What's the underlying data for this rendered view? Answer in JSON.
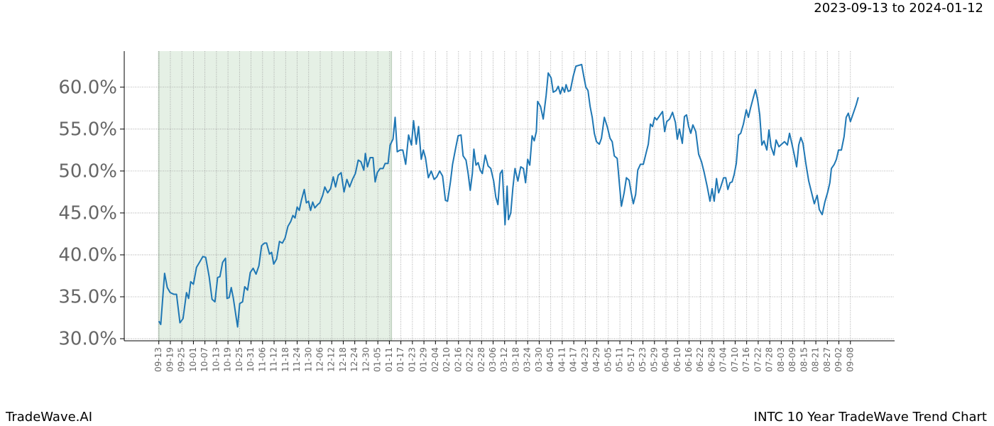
{
  "chart_data": {
    "type": "line",
    "title": "2023-09-13 to 2024-01-12",
    "source": "TradeWave.AI",
    "caption": "INTC 10 Year TradeWave Trend Chart",
    "color": "#1f77b4",
    "highlight_range": [
      0,
      121
    ],
    "highlight_color": "#e5f0e5",
    "grid": true,
    "xlim": [
      -18,
      383
    ],
    "ylim": [
      29.75,
      64.3
    ],
    "yticks": [
      {
        "value": 30,
        "label": "30.0%"
      },
      {
        "value": 35,
        "label": "35.0%"
      },
      {
        "value": 40,
        "label": "40.0%"
      },
      {
        "value": 45,
        "label": "45.0%"
      },
      {
        "value": 50,
        "label": "50.0%"
      },
      {
        "value": 55,
        "label": "55.0%"
      },
      {
        "value": 60,
        "label": "60.0%"
      }
    ],
    "xticks": [
      {
        "value": 0,
        "label": "09-13"
      },
      {
        "value": 6,
        "label": "09-19"
      },
      {
        "value": 12,
        "label": "09-25"
      },
      {
        "value": 18,
        "label": "10-01"
      },
      {
        "value": 24,
        "label": "10-07"
      },
      {
        "value": 30,
        "label": "10-13"
      },
      {
        "value": 36,
        "label": "10-19"
      },
      {
        "value": 42,
        "label": "10-25"
      },
      {
        "value": 48,
        "label": "10-31"
      },
      {
        "value": 54,
        "label": "11-06"
      },
      {
        "value": 60,
        "label": "11-12"
      },
      {
        "value": 66,
        "label": "11-18"
      },
      {
        "value": 72,
        "label": "11-24"
      },
      {
        "value": 78,
        "label": "11-30"
      },
      {
        "value": 84,
        "label": "12-06"
      },
      {
        "value": 90,
        "label": "12-12"
      },
      {
        "value": 96,
        "label": "12-18"
      },
      {
        "value": 102,
        "label": "12-24"
      },
      {
        "value": 108,
        "label": "12-30"
      },
      {
        "value": 114,
        "label": "01-05"
      },
      {
        "value": 120,
        "label": "01-11"
      },
      {
        "value": 126,
        "label": "01-17"
      },
      {
        "value": 132,
        "label": "01-23"
      },
      {
        "value": 138,
        "label": "01-29"
      },
      {
        "value": 144,
        "label": "02-04"
      },
      {
        "value": 150,
        "label": "02-10"
      },
      {
        "value": 156,
        "label": "02-16"
      },
      {
        "value": 162,
        "label": "02-22"
      },
      {
        "value": 168,
        "label": "02-28"
      },
      {
        "value": 174,
        "label": "03-06"
      },
      {
        "value": 180,
        "label": "03-12"
      },
      {
        "value": 186,
        "label": "03-18"
      },
      {
        "value": 192,
        "label": "03-24"
      },
      {
        "value": 198,
        "label": "03-30"
      },
      {
        "value": 204,
        "label": "04-05"
      },
      {
        "value": 210,
        "label": "04-11"
      },
      {
        "value": 216,
        "label": "04-17"
      },
      {
        "value": 222,
        "label": "04-23"
      },
      {
        "value": 228,
        "label": "04-29"
      },
      {
        "value": 234,
        "label": "05-05"
      },
      {
        "value": 240,
        "label": "05-11"
      },
      {
        "value": 246,
        "label": "05-17"
      },
      {
        "value": 252,
        "label": "05-23"
      },
      {
        "value": 258,
        "label": "05-29"
      },
      {
        "value": 264,
        "label": "06-04"
      },
      {
        "value": 270,
        "label": "06-10"
      },
      {
        "value": 276,
        "label": "06-16"
      },
      {
        "value": 282,
        "label": "06-22"
      },
      {
        "value": 288,
        "label": "06-28"
      },
      {
        "value": 294,
        "label": "07-04"
      },
      {
        "value": 300,
        "label": "07-10"
      },
      {
        "value": 306,
        "label": "07-16"
      },
      {
        "value": 312,
        "label": "07-22"
      },
      {
        "value": 318,
        "label": "07-28"
      },
      {
        "value": 324,
        "label": "08-03"
      },
      {
        "value": 330,
        "label": "08-09"
      },
      {
        "value": 336,
        "label": "08-15"
      },
      {
        "value": 342,
        "label": "08-21"
      },
      {
        "value": 348,
        "label": "08-27"
      },
      {
        "value": 354,
        "label": "09-02"
      },
      {
        "value": 360,
        "label": "09-08"
      }
    ],
    "x": [
      0,
      1,
      3,
      4.4,
      5.9,
      7.8,
      9.2,
      11,
      12.6,
      14.4,
      15.5,
      16.6,
      18,
      19.6,
      21.4,
      22.9,
      24.4,
      26.2,
      27.7,
      29.2,
      30.6,
      31.8,
      33.2,
      34.7,
      35.5,
      36.6,
      37.7,
      38.8,
      39.9,
      41,
      42.1,
      43.6,
      44.7,
      46.2,
      47.6,
      49.1,
      50.6,
      52.1,
      53.5,
      55,
      56.1,
      57.6,
      58.7,
      59.8,
      61.3,
      62.8,
      64.3,
      65.7,
      67.2,
      68.7,
      69.8,
      70.9,
      72,
      73.1,
      74.2,
      75.7,
      76.8,
      77.9,
      79,
      80.1,
      81.2,
      82.7,
      83.8,
      85.3,
      86.4,
      87.9,
      89.4,
      90.8,
      92,
      93.4,
      94.9,
      96.4,
      97.9,
      99.3,
      100.8,
      102.3,
      103.8,
      105.2,
      106.7,
      107.5,
      108.6,
      110,
      111.5,
      112.6,
      113.7,
      115.2,
      116.7,
      117.8,
      119.3,
      120.4,
      121.9,
      123,
      124.1,
      125.6,
      127,
      128.5,
      130,
      131.5,
      132.6,
      134,
      135.2,
      136.6,
      137.7,
      138.8,
      140.3,
      141.8,
      143.3,
      144.7,
      146.2,
      147.7,
      149.2,
      150.3,
      151.8,
      152.9,
      154.4,
      155.8,
      157.3,
      158.4,
      159.9,
      161,
      162.1,
      163.2,
      164,
      165.1,
      166.2,
      167.3,
      168.4,
      169.9,
      171.4,
      172.8,
      174.3,
      175.4,
      176.5,
      177.7,
      178.8,
      180.2,
      181.3,
      182,
      183.2,
      184.3,
      185.4,
      186.9,
      188.4,
      189.8,
      190.9,
      192,
      193.1,
      194.3,
      195.4,
      196.5,
      197.2,
      198.7,
      200.1,
      201.6,
      202.7,
      204.2,
      205.3,
      206.8,
      207.9,
      209,
      210.1,
      211.2,
      212,
      213.1,
      214.2,
      215.7,
      217.1,
      218.6,
      220.1,
      221.2,
      222.3,
      223.4,
      224.5,
      225.6,
      226.7,
      227.8,
      229.3,
      230.4,
      231.9,
      233.4,
      234.9,
      236,
      237.1,
      238.6,
      239.7,
      240.8,
      242.2,
      243.4,
      244.8,
      245.9,
      247,
      248.2,
      249.3,
      250.7,
      252.2,
      253.7,
      254.8,
      255.9,
      257,
      258.1,
      259.2,
      260.7,
      262.2,
      263.3,
      264.4,
      265.9,
      267.4,
      268.9,
      269.9,
      271,
      272.5,
      273.6,
      274.7,
      275.8,
      276.9,
      278,
      279.5,
      281,
      282.5,
      283.9,
      285.4,
      286.9,
      288,
      289.1,
      290.3,
      291.4,
      292.5,
      294,
      295.1,
      296.2,
      297.3,
      298.4,
      299.5,
      300.6,
      301.8,
      302.9,
      304.3,
      305.8,
      306.9,
      308,
      309.5,
      310.6,
      311.7,
      312.8,
      313.9,
      315,
      316.5,
      317.6,
      318.7,
      320.2,
      321.3,
      322.8,
      324.2,
      325.7,
      327.2,
      328.3,
      329.4,
      330.9,
      332,
      333.1,
      334.2,
      335.3,
      336.8,
      338.3,
      339.7,
      341.2,
      342.7,
      343.8,
      345.3,
      346.7,
      348.2,
      349.3,
      350.1,
      351.6,
      352.7,
      353.8,
      355.3,
      356.7,
      357.8,
      358.9,
      360,
      361.5,
      363,
      364.1
    ],
    "values": [
      32.1,
      31.7,
      37.8,
      36.1,
      35.5,
      35.3,
      35.3,
      31.9,
      32.4,
      35.5,
      34.8,
      36.8,
      36.5,
      38.5,
      39.2,
      39.8,
      39.7,
      37.4,
      34.7,
      34.4,
      37.3,
      37.4,
      39.1,
      39.6,
      34.8,
      34.9,
      36.1,
      34.8,
      33.1,
      31.4,
      34.2,
      34.4,
      36.2,
      35.8,
      37.9,
      38.4,
      37.7,
      38.7,
      41.1,
      41.4,
      41.4,
      40.1,
      40.3,
      38.9,
      39.5,
      41.6,
      41.4,
      42.0,
      43.4,
      44,
      44.7,
      44.4,
      45.7,
      45.3,
      46.5,
      47.8,
      46.2,
      46.4,
      45.3,
      46.3,
      45.6,
      46,
      46.2,
      47.1,
      48.1,
      47.4,
      47.9,
      49.3,
      48.1,
      49.5,
      49.8,
      47.5,
      49,
      48.1,
      49,
      49.7,
      51.3,
      51.1,
      50.1,
      52.1,
      50.5,
      51.6,
      51.6,
      48.7,
      49.8,
      50.3,
      50.3,
      50.9,
      50.9,
      53.1,
      53.8,
      56.4,
      52.3,
      52.5,
      52.5,
      50.8,
      54.3,
      53.1,
      56,
      53.2,
      55.3,
      51.4,
      52.5,
      51.6,
      49.2,
      50,
      49,
      49.3,
      50,
      49.4,
      46.5,
      46.4,
      48.7,
      50.8,
      52.6,
      54.2,
      54.3,
      51.8,
      51.3,
      49.7,
      47.7,
      49.7,
      52.6,
      50.7,
      51,
      50.1,
      49.7,
      51.9,
      50.6,
      50.3,
      48.8,
      46.9,
      46,
      49.7,
      50.1,
      43.6,
      48.2,
      44.2,
      45,
      48,
      50.3,
      48.8,
      50.5,
      50.3,
      48.6,
      51.4,
      50.7,
      54.2,
      53.6,
      54.7,
      58.3,
      57.7,
      56.2,
      59,
      61.7,
      61.1,
      59.4,
      59.6,
      60.1,
      59.2,
      60,
      59.4,
      60.3,
      59.5,
      59.6,
      61.3,
      62.5,
      62.6,
      62.7,
      61.3,
      60,
      59.6,
      57.7,
      56.4,
      54.5,
      53.5,
      53.2,
      53.9,
      56.4,
      55.3,
      53.9,
      53.5,
      51.8,
      51.5,
      48.6,
      45.8,
      47.4,
      49.2,
      48.9,
      47.4,
      46.1,
      47.2,
      50.1,
      50.8,
      50.8,
      52.2,
      53.2,
      55.6,
      55.3,
      56.4,
      56.1,
      56.6,
      57.1,
      54.7,
      55.9,
      56.2,
      57,
      55.8,
      53.8,
      55,
      53.3,
      56.5,
      56.7,
      55.3,
      54.5,
      55.5,
      54.7,
      52,
      51.1,
      49.8,
      48.2,
      46.4,
      47.9,
      46.4,
      49.1,
      47.4,
      48.1,
      49.2,
      49.2,
      47.8,
      48.6,
      48.7,
      49.6,
      50.9,
      54.3,
      54.5,
      55.6,
      57.3,
      56.4,
      57.5,
      58.8,
      59.7,
      58.5,
      56.7,
      53.1,
      53.6,
      52.5,
      54.9,
      52.9,
      51.9,
      53.7,
      52.9,
      53.2,
      53.5,
      53.1,
      54.5,
      53.4,
      51.8,
      50.5,
      53.1,
      54,
      53.3,
      50.9,
      48.8,
      47.5,
      46.1,
      47.1,
      45.4,
      44.8,
      46.3,
      47.5,
      48.6,
      50.3,
      50.8,
      51.4,
      52.5,
      52.5,
      54.1,
      56.4,
      56.9,
      55.9,
      56.9,
      57.9,
      58.8
    ]
  }
}
